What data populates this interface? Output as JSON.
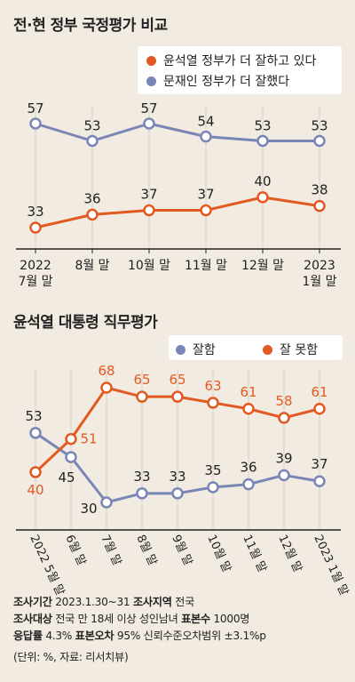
{
  "chart1_title": "전·현 정부 국정평가 비교",
  "chart2_title": "윤석열 대통령 직무평가",
  "colors": {
    "orange": "#e15a21",
    "blue": "#7a86b5",
    "background": "#f2ebe1",
    "axis": "#222222"
  },
  "footer": {
    "line1_label1": "조사기간",
    "line1_value1": " 2023.1.30~31 ",
    "line1_label2": "조사지역",
    "line1_value2": " 전국",
    "line2_label1": "조사대상",
    "line2_value1": " 전국 만 18세 이상 성인남녀 ",
    "line2_label2": "표본수",
    "line2_value2": " 1000명",
    "line3_label1": "응답률",
    "line3_value1": " 4.3% ",
    "line3_label2": "표본오차",
    "line3_value2": " 95% 신뢰수준오차범위 ±3.1%p",
    "note": "(단위: %, 자료: 리서치뷰)"
  },
  "chart_data": [
    {
      "type": "line",
      "title": "전·현 정부 국정평가 비교",
      "categories": [
        [
          "2022",
          "7월 말"
        ],
        [
          "8월 말"
        ],
        [
          "10월 말"
        ],
        [
          "11월 말"
        ],
        [
          "12월 말"
        ],
        [
          "2023",
          "1월 말"
        ]
      ],
      "series": [
        {
          "name": "윤석열 정부가 더 잘하고 있다",
          "color": "#e15a21",
          "values": [
            33,
            36,
            37,
            37,
            40,
            38
          ]
        },
        {
          "name": "문재인 정부가 더 잘했다",
          "color": "#7a86b5",
          "values": [
            57,
            53,
            57,
            54,
            53,
            53
          ]
        }
      ],
      "legend": "top-right",
      "grid": "vertical"
    },
    {
      "type": "line",
      "title": "윤석열 대통령 직무평가",
      "categories": [
        "2022 5월 말",
        "6월 말",
        "7월 말",
        "8월 말",
        "9월 말",
        "10월 말",
        "11월 말",
        "12월 말",
        "2023 1월 말"
      ],
      "series": [
        {
          "name": "잘함",
          "color": "#7a86b5",
          "values": [
            53,
            45,
            30,
            33,
            33,
            35,
            36,
            39,
            37
          ]
        },
        {
          "name": "잘 못함",
          "color": "#e15a21",
          "values": [
            40,
            51,
            68,
            65,
            65,
            63,
            61,
            58,
            61
          ]
        }
      ],
      "legend": "top-right",
      "grid": "vertical"
    }
  ]
}
